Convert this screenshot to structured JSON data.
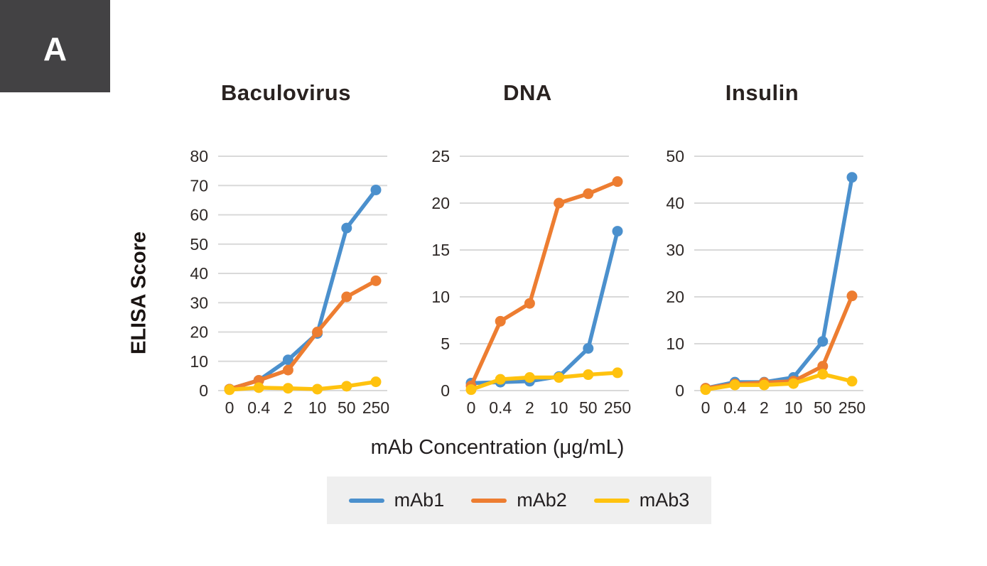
{
  "panel_label": "A",
  "ylabel": "ELISA Score",
  "xlabel": "mAb Concentration (μg/mL)",
  "style": {
    "series_colors": {
      "mAb1": "#4B90CD",
      "mAb2": "#ED7D31",
      "mAb3": "#FFC20E"
    },
    "grid_color": "#D9D9D9",
    "tick_color": "#2E2826",
    "panel_box_color": "#434244",
    "legend_bg": "#EFEFEF"
  },
  "legend": [
    {
      "label": "mAb1",
      "color": "#4B90CD"
    },
    {
      "label": "mAb2",
      "color": "#ED7D31"
    },
    {
      "label": "mAb3",
      "color": "#FFC20E"
    }
  ],
  "chart_data": [
    {
      "type": "line",
      "title": "Baculovirus",
      "categories": [
        "0",
        "0.4",
        "2",
        "10",
        "50",
        "250"
      ],
      "xlabel": "mAb Concentration (μg/mL)",
      "ylabel": "ELISA Score",
      "ylim": [
        0,
        80
      ],
      "yticks": [
        0,
        10,
        20,
        30,
        40,
        50,
        60,
        70,
        80
      ],
      "grid": true,
      "series": [
        {
          "name": "mAb1",
          "color": "#4B90CD",
          "values": [
            0.5,
            3.5,
            10.5,
            19.5,
            55.5,
            68.5
          ]
        },
        {
          "name": "mAb2",
          "color": "#ED7D31",
          "values": [
            0.5,
            3.5,
            7.0,
            20.0,
            32.0,
            37.5
          ]
        },
        {
          "name": "mAb3",
          "color": "#FFC20E",
          "values": [
            0.3,
            1.0,
            0.8,
            0.5,
            1.5,
            3.0
          ]
        }
      ]
    },
    {
      "type": "line",
      "title": "DNA",
      "categories": [
        "0",
        "0.4",
        "2",
        "10",
        "50",
        "250"
      ],
      "xlabel": "mAb Concentration (μg/mL)",
      "ylabel": "ELISA Score",
      "ylim": [
        0,
        25
      ],
      "yticks": [
        0,
        5,
        10,
        15,
        20,
        25
      ],
      "grid": true,
      "series": [
        {
          "name": "mAb1",
          "color": "#4B90CD",
          "values": [
            0.8,
            0.9,
            1.0,
            1.5,
            4.5,
            17.0
          ]
        },
        {
          "name": "mAb2",
          "color": "#ED7D31",
          "values": [
            0.5,
            7.4,
            9.3,
            20.0,
            21.0,
            22.3
          ]
        },
        {
          "name": "mAb3",
          "color": "#FFC20E",
          "values": [
            0.1,
            1.2,
            1.4,
            1.4,
            1.7,
            1.9
          ]
        }
      ]
    },
    {
      "type": "line",
      "title": "Insulin",
      "categories": [
        "0",
        "0.4",
        "2",
        "10",
        "50",
        "250"
      ],
      "xlabel": "mAb Concentration (μg/mL)",
      "ylabel": "ELISA Score",
      "ylim": [
        0,
        50
      ],
      "yticks": [
        0,
        10,
        20,
        30,
        40,
        50
      ],
      "grid": true,
      "series": [
        {
          "name": "mAb1",
          "color": "#4B90CD",
          "values": [
            0.5,
            1.8,
            1.8,
            2.8,
            10.5,
            45.5
          ]
        },
        {
          "name": "mAb2",
          "color": "#ED7D31",
          "values": [
            0.5,
            1.4,
            1.7,
            2.0,
            5.2,
            20.2
          ]
        },
        {
          "name": "mAb3",
          "color": "#FFC20E",
          "values": [
            0.2,
            1.2,
            1.2,
            1.5,
            3.5,
            2.0
          ]
        }
      ]
    }
  ]
}
